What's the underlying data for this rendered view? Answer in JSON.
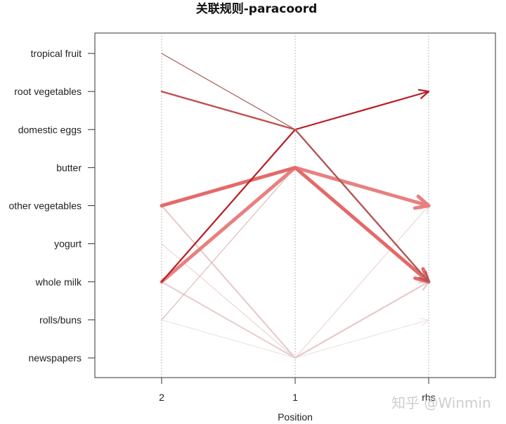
{
  "chart_data": {
    "type": "parallel_coordinates",
    "title": "关联规则-paracoord",
    "xlabel": "Position",
    "ylabel": "",
    "x_axes": [
      "2",
      "1",
      "rhs"
    ],
    "y_categories": [
      "tropical fruit",
      "root vegetables",
      "domestic eggs",
      "butter",
      "other vegetables",
      "yogurt",
      "whole milk",
      "rolls/buns",
      "newspapers"
    ],
    "grid": "vertical dotted lines at each position",
    "rules": [
      {
        "path": [
          "tropical fruit",
          "domestic eggs",
          "whole milk"
        ],
        "color": "#a85a5a",
        "width": 1.2
      },
      {
        "path": [
          "root vegetables",
          "domestic eggs",
          "whole milk"
        ],
        "color": "#c05050",
        "width": 2.4
      },
      {
        "path": [
          "whole milk",
          "domestic eggs",
          "root vegetables"
        ],
        "color": "#b81d22",
        "width": 2.2
      },
      {
        "path": [
          "other vegetables",
          "butter",
          "whole milk"
        ],
        "color": "#e46a6a",
        "width": 5
      },
      {
        "path": [
          "whole milk",
          "butter",
          "other vegetables"
        ],
        "color": "#e88080",
        "width": 5
      },
      {
        "path": [
          "rolls/buns",
          "butter",
          "whole milk"
        ],
        "color": "#d8b0b0",
        "width": 1
      },
      {
        "path": [
          "other vegetables",
          "newspapers",
          "whole milk"
        ],
        "color": "#e8c8c8",
        "width": 2
      },
      {
        "path": [
          "yogurt",
          "newspapers",
          "other vegetables"
        ],
        "color": "#ecd6d6",
        "width": 1.2
      },
      {
        "path": [
          "whole milk",
          "newspapers",
          "whole milk"
        ],
        "color": "#e8cccc",
        "width": 2
      },
      {
        "path": [
          "rolls/buns",
          "newspapers",
          "rolls/buns"
        ],
        "color": "#f0e2e2",
        "width": 1.2
      }
    ]
  },
  "title": "关联规则-paracoord",
  "x_axis": {
    "title": "Position",
    "ticks": [
      "2",
      "1",
      "rhs"
    ]
  },
  "y_axis": {
    "ticks": [
      "tropical fruit",
      "root vegetables",
      "domestic eggs",
      "butter",
      "other vegetables",
      "yogurt",
      "whole milk",
      "rolls/buns",
      "newspapers"
    ]
  },
  "watermark": "知乎 @Winmin"
}
